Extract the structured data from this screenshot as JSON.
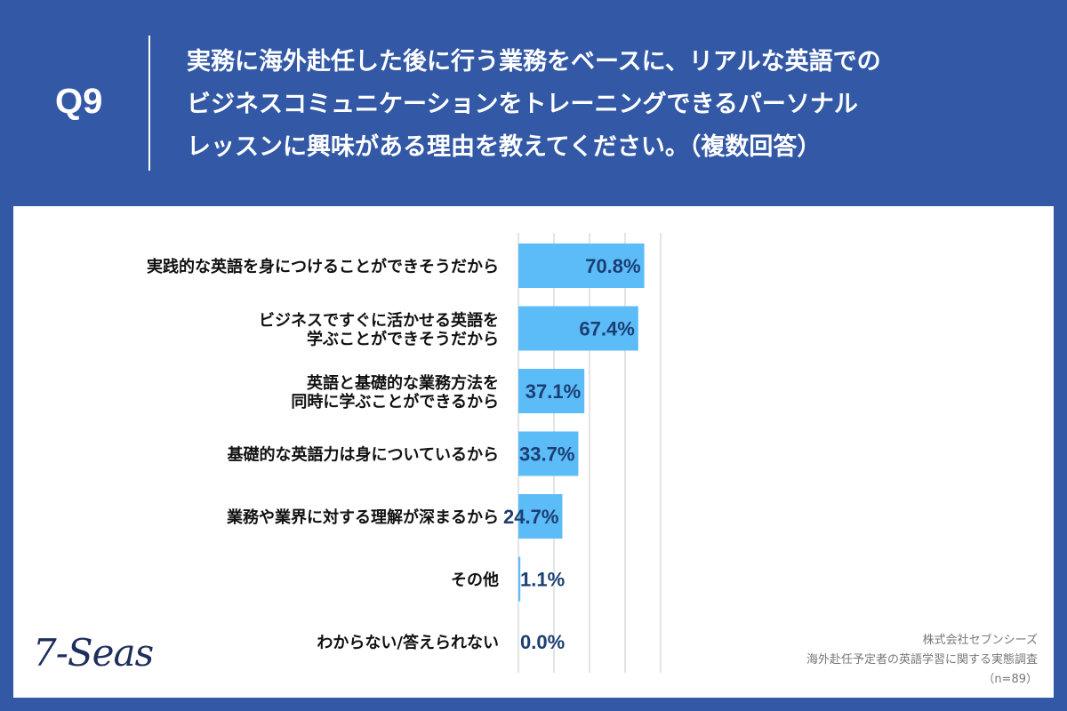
{
  "header": {
    "qnum": "Q9",
    "question_lines": [
      "実務に海外赴任した後に行う業務をベースに、リアルな英語での",
      "ビジネスコミュニケーションをトレーニングできるパーソナル",
      "レッスンに興味がある理由を教えてください。（複数回答）"
    ]
  },
  "chart_data": {
    "type": "bar",
    "orientation": "horizontal",
    "categories": [
      "実践的な英語を身につけることができそうだから",
      "ビジネスですぐに活かせる英語を\n学ぶことができそうだから",
      "英語と基礎的な業務方法を\n同時に学ぶことができるから",
      "基礎的な英語力は身についているから",
      "業務や業界に対する理解が深まるから",
      "その他",
      "わからない/答えられない"
    ],
    "values": [
      70.8,
      67.4,
      37.1,
      33.7,
      24.7,
      1.1,
      0.0
    ],
    "value_labels": [
      "70.8%",
      "67.4%",
      "37.1%",
      "33.7%",
      "24.7%",
      "1.1%",
      "0.0%"
    ],
    "xlim": [
      0,
      80
    ],
    "grid": true,
    "bar_color": "#5bbcf8"
  },
  "footer": {
    "logo": "7-Seas",
    "source_lines": [
      "株式会社セブンシーズ",
      "海外赴任予定者の英語学習に関する実態調査",
      "（n=89）"
    ]
  }
}
